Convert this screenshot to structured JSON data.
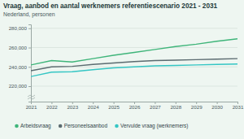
{
  "chart_data": {
    "type": "line",
    "title": "Vraag, aanbod en aantal werknemers referentiescenario 2021 - 2031",
    "subtitle": "Nederland, personen",
    "x": [
      2021,
      2022,
      2023,
      2024,
      2025,
      2026,
      2027,
      2028,
      2029,
      2030,
      2031
    ],
    "xlim": [
      2021,
      2031
    ],
    "xticks": [
      2021,
      2022,
      2023,
      2024,
      2025,
      2026,
      2027,
      2028,
      2029,
      2030,
      2031
    ],
    "ylim": [
      204000,
      284000
    ],
    "yticks": [
      {
        "value": 220000,
        "label": "220,000"
      },
      {
        "value": 240000,
        "label": "240,000"
      },
      {
        "value": 260000,
        "label": "260,000"
      },
      {
        "value": 280000,
        "label": "280,000"
      }
    ],
    "grid": true,
    "legend": "bottom",
    "series": [
      {
        "name": "Arbeidsvraag",
        "color": "#3fb57a",
        "values": [
          242000,
          246500,
          245000,
          248500,
          252000,
          255000,
          258000,
          261000,
          263500,
          266500,
          269000
        ]
      },
      {
        "name": "Personeelsaanbod",
        "color": "#5b6b70",
        "values": [
          236000,
          240000,
          240500,
          242500,
          244000,
          245500,
          246500,
          247000,
          247500,
          248000,
          248500
        ]
      },
      {
        "name": "Vervulde vraag (werknemers)",
        "color": "#35c6c4",
        "values": [
          230000,
          234500,
          235000,
          237000,
          239000,
          240000,
          241000,
          241500,
          242000,
          242500,
          243000
        ]
      }
    ]
  }
}
